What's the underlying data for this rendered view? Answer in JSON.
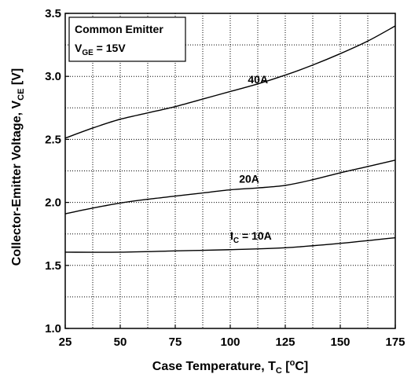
{
  "chart_data": {
    "type": "line",
    "xlabel": {
      "main": "Case Temperature, T",
      "sub": "C",
      "mid": " [",
      "sup": "o",
      "end": "C]"
    },
    "ylabel": {
      "main": "Collector-Emitter Voltage, V",
      "sub": "CE",
      "end": " [V]"
    },
    "xlim": [
      25,
      175
    ],
    "ylim": [
      1.0,
      3.5
    ],
    "x_ticks": [
      25,
      50,
      75,
      100,
      125,
      150,
      175
    ],
    "y_ticks": [
      "1.0",
      "1.5",
      "2.0",
      "2.5",
      "3.0",
      "3.5"
    ],
    "grid": true,
    "legend": {
      "line1": "Common Emitter",
      "line2_main": "V",
      "line2_sub": "GE",
      "line2_end": " = 15V"
    },
    "series": [
      {
        "name": "40A",
        "label": {
          "main": "40A",
          "sub": "",
          "end": ""
        },
        "x": [
          25,
          37.5,
          50,
          62.5,
          75,
          87.5,
          100,
          112.5,
          125,
          137.5,
          150,
          162.5,
          175
        ],
        "values": [
          2.51,
          2.59,
          2.66,
          2.71,
          2.76,
          2.82,
          2.88,
          2.94,
          3.01,
          3.09,
          3.18,
          3.28,
          3.4
        ]
      },
      {
        "name": "20A",
        "label": {
          "main": "20A",
          "sub": "",
          "end": ""
        },
        "x": [
          25,
          37.5,
          50,
          62.5,
          75,
          87.5,
          100,
          112.5,
          125,
          137.5,
          150,
          162.5,
          175
        ],
        "values": [
          1.91,
          1.955,
          1.995,
          2.025,
          2.05,
          2.075,
          2.1,
          2.115,
          2.135,
          2.18,
          2.235,
          2.285,
          2.335
        ]
      },
      {
        "name": "I_C = 10A",
        "label": {
          "main": "I",
          "sub": "C",
          "end": " = 10A"
        },
        "x": [
          25,
          50,
          75,
          100,
          125,
          150,
          175
        ],
        "values": [
          1.605,
          1.605,
          1.615,
          1.625,
          1.64,
          1.675,
          1.72
        ]
      }
    ]
  }
}
